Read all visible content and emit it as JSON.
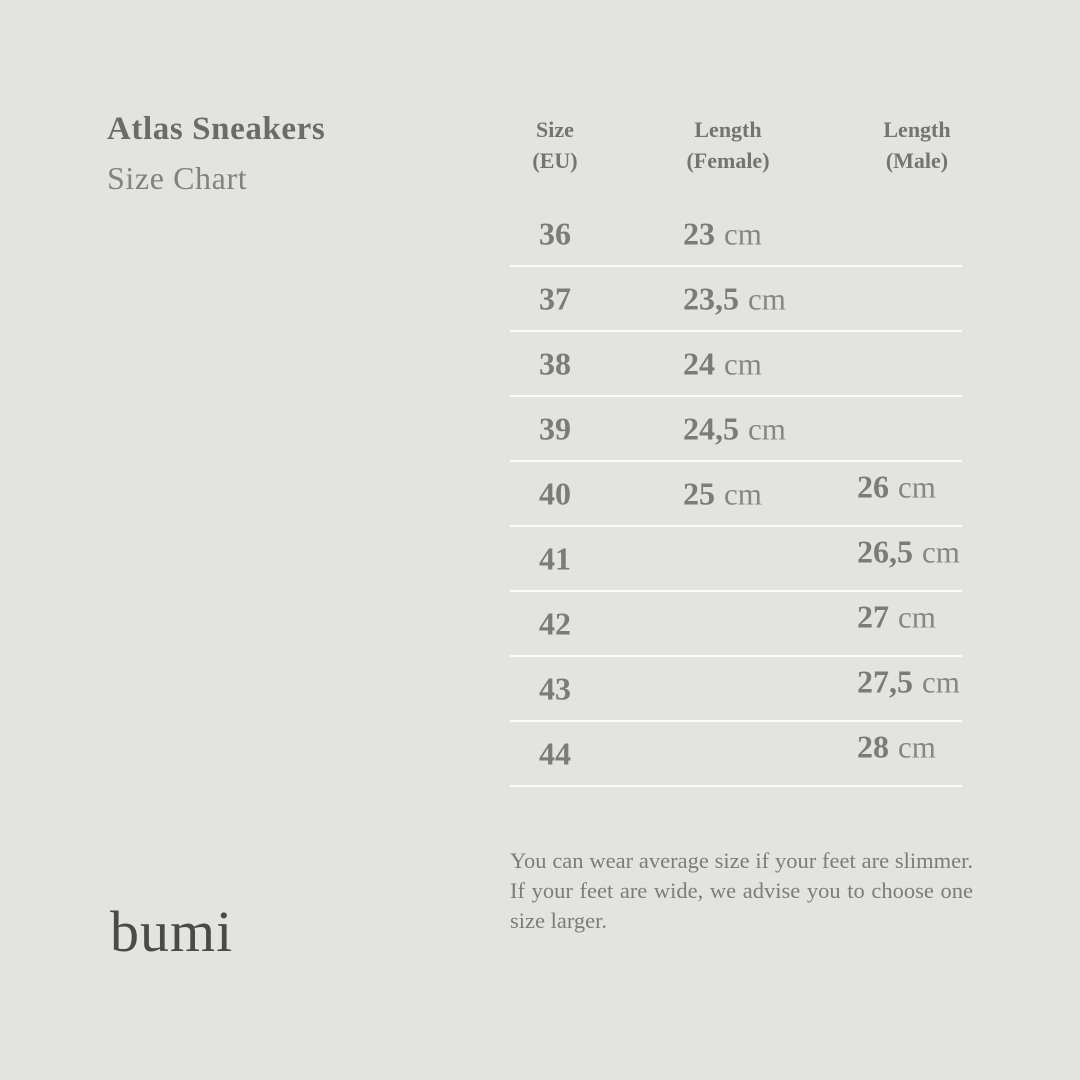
{
  "colors": {
    "background": "#e3e3e2",
    "title": "#6b6b6b",
    "subtitle": "#828282",
    "table_text": "#7b7b7b",
    "divider": "#fafafa",
    "logo": "#4a4a48"
  },
  "header": {
    "title": "Atlas Sneakers",
    "subtitle": "Size Chart"
  },
  "table": {
    "columns": [
      {
        "line1": "Size",
        "line2": "(EU)"
      },
      {
        "line1": "Length",
        "line2": "(Female)"
      },
      {
        "line1": "Length",
        "line2": "(Male)"
      }
    ],
    "rows": [
      {
        "size": "36",
        "female": "23",
        "female_unit": "cm",
        "male": "",
        "male_unit": ""
      },
      {
        "size": "37",
        "female": "23,5",
        "female_unit": "cm",
        "male": "",
        "male_unit": ""
      },
      {
        "size": "38",
        "female": "24",
        "female_unit": "cm",
        "male": "",
        "male_unit": ""
      },
      {
        "size": "39",
        "female": "24,5",
        "female_unit": "cm",
        "male": "",
        "male_unit": ""
      },
      {
        "size": "40",
        "female": "25",
        "female_unit": "cm",
        "male": "26",
        "male_unit": "cm"
      },
      {
        "size": "41",
        "female": "",
        "female_unit": "",
        "male": "26,5",
        "male_unit": "cm"
      },
      {
        "size": "42",
        "female": "",
        "female_unit": "",
        "male": "27",
        "male_unit": "cm"
      },
      {
        "size": "43",
        "female": "",
        "female_unit": "",
        "male": "27,5",
        "male_unit": "cm"
      },
      {
        "size": "44",
        "female": "",
        "female_unit": "",
        "male": "28",
        "male_unit": "cm"
      }
    ]
  },
  "note": {
    "text": "You can wear average size if your feet are slimmer. If your feet are wide, we advise you to choose one size larger."
  },
  "brand": {
    "logo_text": "bumi"
  },
  "chart_data": {
    "type": "table",
    "title": "Atlas Sneakers Size Chart",
    "columns": [
      "Size (EU)",
      "Length (Female)",
      "Length (Male)"
    ],
    "rows": [
      [
        "36",
        "23 cm",
        ""
      ],
      [
        "37",
        "23,5 cm",
        ""
      ],
      [
        "38",
        "24 cm",
        ""
      ],
      [
        "39",
        "24,5 cm",
        ""
      ],
      [
        "40",
        "25 cm",
        "26 cm"
      ],
      [
        "41",
        "",
        "26,5 cm"
      ],
      [
        "42",
        "",
        "27 cm"
      ],
      [
        "43",
        "",
        "27,5 cm"
      ],
      [
        "44",
        "",
        "28 cm"
      ]
    ]
  }
}
